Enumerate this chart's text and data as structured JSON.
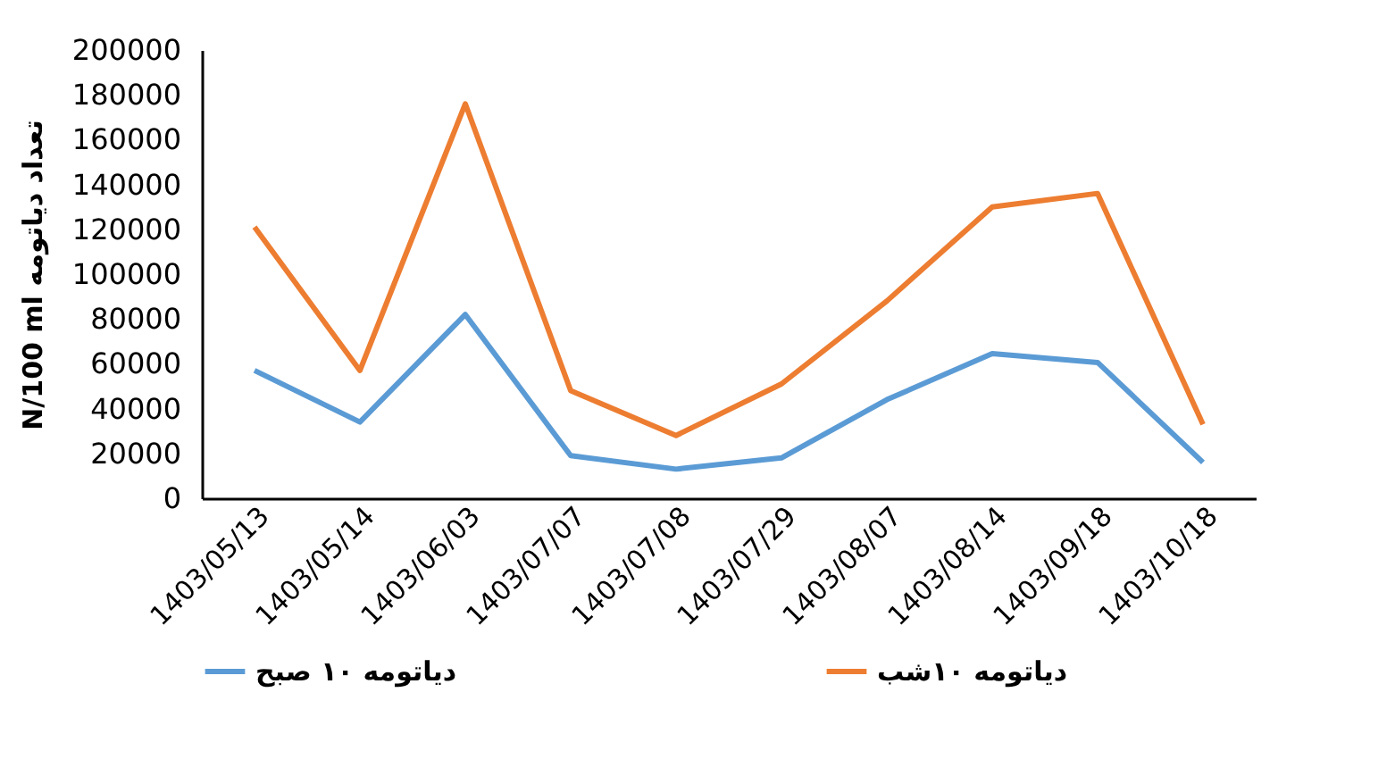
{
  "chart_data": {
    "type": "line",
    "ylabel": "N/100 ml  تعداد دیاتومه",
    "categories": [
      "1403/05/13",
      "1403/05/14",
      "1403/06/03",
      "1403/07/07",
      "1403/07/08",
      "1403/07/29",
      "1403/08/07",
      "1403/08/14",
      "1403/09/18",
      "1403/10/18"
    ],
    "series": [
      {
        "name": "دیاتومه ۱۰ صبح",
        "color": "#5b9bd5",
        "values": [
          57000,
          34000,
          82000,
          19000,
          13000,
          18000,
          44000,
          64500,
          60600,
          16000
        ]
      },
      {
        "name": "دیاتومه ۱۰شب",
        "color": "#ed7d31",
        "values": [
          121000,
          57000,
          176000,
          48000,
          28000,
          51000,
          88000,
          130000,
          136000,
          33000
        ]
      }
    ],
    "ylim": [
      0,
      200000
    ],
    "yticks": [
      0,
      20000,
      40000,
      60000,
      80000,
      100000,
      120000,
      140000,
      160000,
      180000,
      200000
    ],
    "grid": false,
    "legend": "bottom",
    "marker": "none",
    "line_style": "solid"
  }
}
